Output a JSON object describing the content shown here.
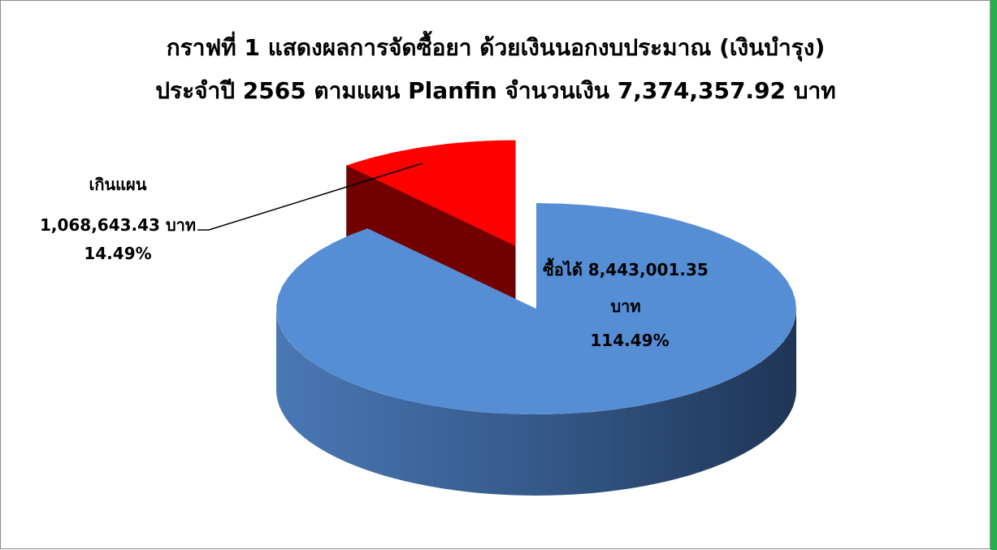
{
  "chart_data": {
    "type": "pie3d",
    "title": [
      "กราฟที่ 1 แสดงผลการจัดซื้อยา ด้วยเงินนอกงบประมาณ (เงินบำรุง)",
      "ประจำปี 2565 ตามแผน Planfin จำนวนเงิน 7,374,357.92 บาท"
    ],
    "categories": [
      "ซื้อได้",
      "เกินแผน"
    ],
    "values": [
      8443001.35,
      1068643.43
    ],
    "value_labels": [
      "8,443,001.35",
      "1,068,643.43"
    ],
    "unit": "บาท",
    "percentages": [
      114.49,
      14.49
    ],
    "percentage_labels": [
      "114.49%",
      "14.49%"
    ],
    "colors": [
      "#558ed5",
      "#ff0000"
    ],
    "exploded": [
      false,
      true
    ]
  }
}
